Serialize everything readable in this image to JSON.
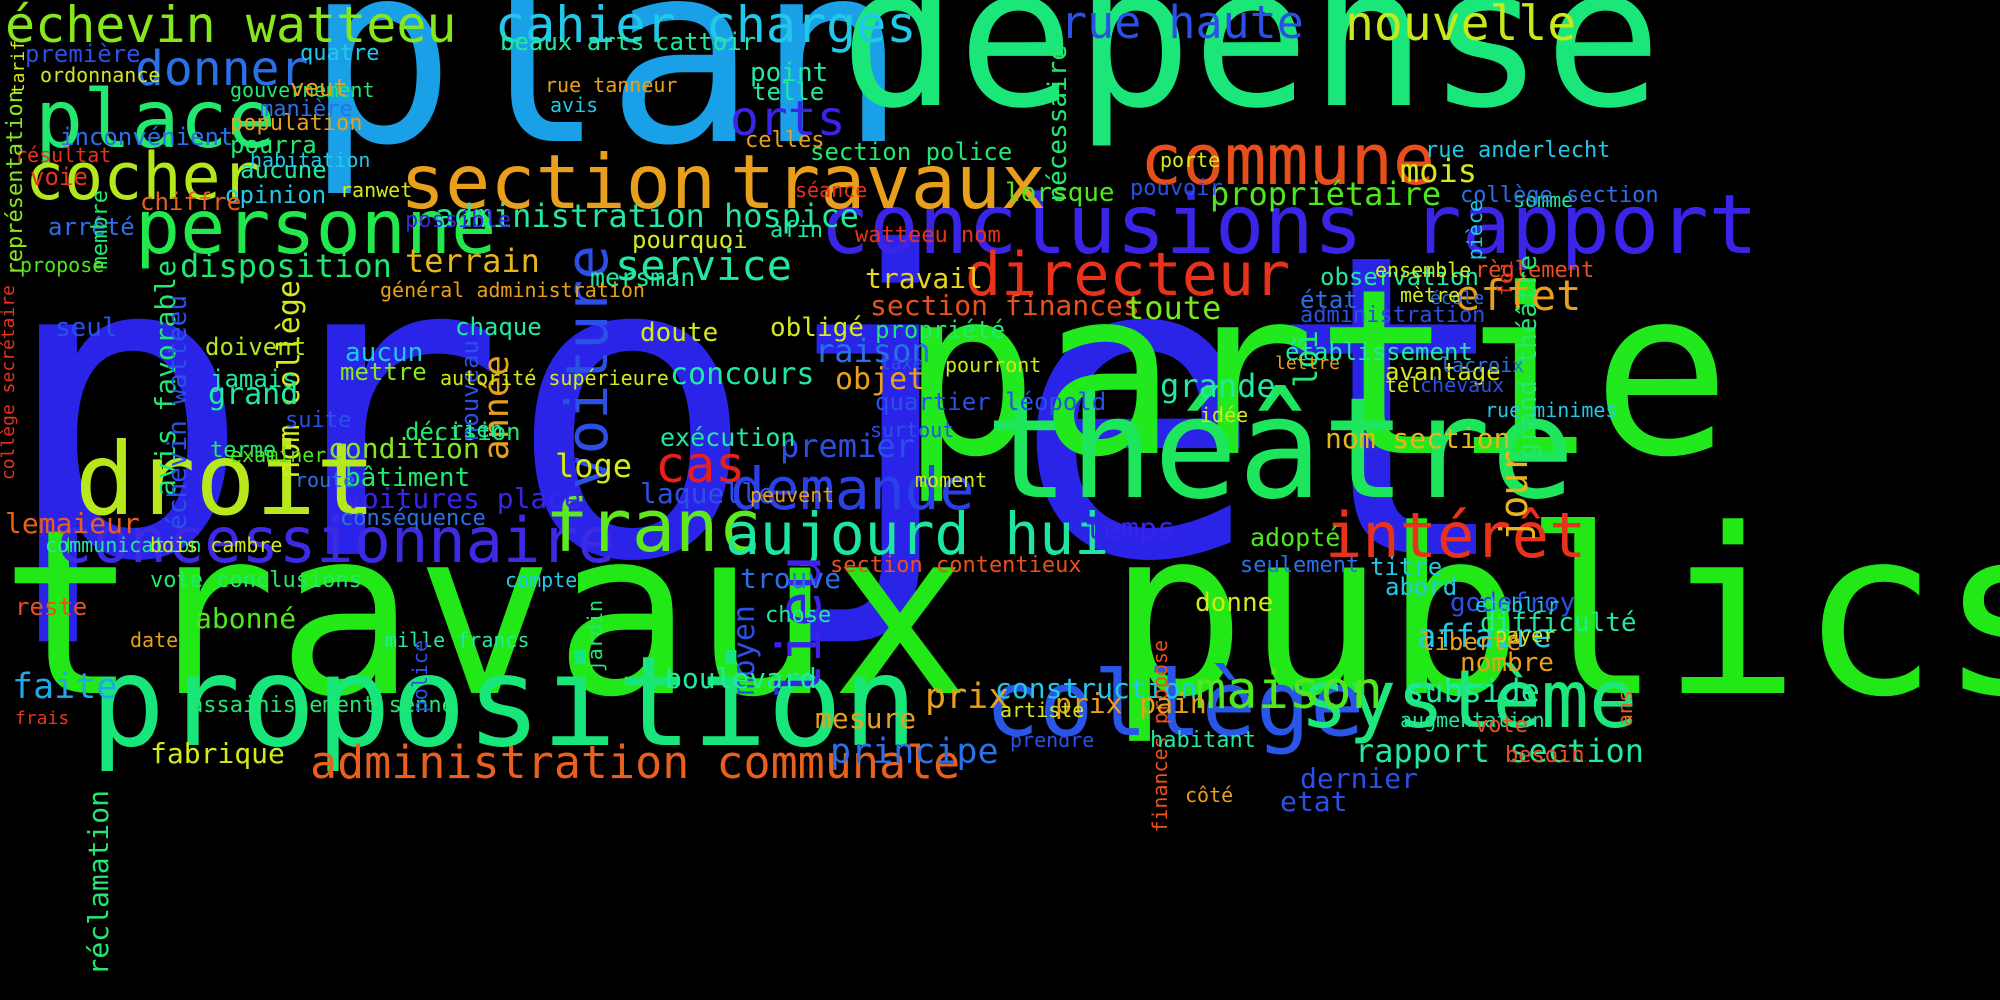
{
  "words": [
    {
      "text": "projet",
      "color": "#2a24e8"
    },
    {
      "text": "travaux publics",
      "color": "#22e818"
    },
    {
      "text": "plan",
      "color": "#1aa0e6"
    },
    {
      "text": "dépense",
      "color": "#1be67a"
    },
    {
      "text": "partie",
      "color": "#22e81e"
    },
    {
      "text": "théâtre",
      "color": "#1ee65c"
    },
    {
      "text": "proposition",
      "color": "#19e67a"
    },
    {
      "text": "droit",
      "color": "#b6e81c"
    },
    {
      "text": "collège",
      "color": "#2a56e8"
    },
    {
      "text": "système",
      "color": "#1de67a"
    },
    {
      "text": "conclusions rapport",
      "color": "#3a24e8"
    },
    {
      "text": "concessionnaire",
      "color": "#3d2ae4"
    },
    {
      "text": "franc",
      "color": "#5ee81e"
    },
    {
      "text": "aujourd hui",
      "color": "#1ee6a0"
    },
    {
      "text": "section",
      "color": "#e8a01c"
    },
    {
      "text": "travaux",
      "color": "#e8a01c"
    },
    {
      "text": "commune",
      "color": "#e84e1c"
    },
    {
      "text": "personne",
      "color": "#22e84c"
    },
    {
      "text": "place",
      "color": "#22e870"
    },
    {
      "text": "cocher",
      "color": "#b4e81c"
    },
    {
      "text": "échevin watteeu",
      "color": "#86e81c"
    },
    {
      "text": "cahier charges",
      "color": "#22c8e8"
    },
    {
      "text": "rue haute",
      "color": "#2a50e8"
    },
    {
      "text": "nouvelle",
      "color": "#c8e81c"
    },
    {
      "text": "donner",
      "color": "#2a70e8"
    },
    {
      "text": "directeur",
      "color": "#e8321c"
    },
    {
      "text": "demande",
      "color": "#2a40e8"
    },
    {
      "text": "intérêt",
      "color": "#e8321c"
    },
    {
      "text": "maison",
      "color": "#4ee81c"
    },
    {
      "text": "cas",
      "color": "#e8201c"
    },
    {
      "text": "voiture",
      "color": "#2a50e8"
    },
    {
      "text": "lieu",
      "color": "#3a24e8"
    },
    {
      "text": "administration communale",
      "color": "#e8601c"
    },
    {
      "text": "service",
      "color": "#22e8a0"
    },
    {
      "text": "orts",
      "color": "#3a24e8"
    },
    {
      "text": "administration hospice",
      "color": "#22e8a0"
    },
    {
      "text": "disposition",
      "color": "#22e870"
    },
    {
      "text": "terrain",
      "color": "#e8b41c"
    },
    {
      "text": "effet",
      "color": "#e8a01c"
    },
    {
      "text": "mois",
      "color": "#d4e81c"
    },
    {
      "text": "propriétaire",
      "color": "#4ee81c"
    },
    {
      "text": "subside",
      "color": "#22e8a0"
    },
    {
      "text": "affaire",
      "color": "#22c8e8"
    },
    {
      "text": "rapport section",
      "color": "#22e8a0"
    },
    {
      "text": "principe",
      "color": "#2a70e8"
    },
    {
      "text": "prix",
      "color": "#e8a01c"
    },
    {
      "text": "construction",
      "color": "#22c8e8"
    },
    {
      "text": "section finances",
      "color": "#e8501c"
    },
    {
      "text": "toute",
      "color": "#7ae81c"
    },
    {
      "text": "jour",
      "color": "#e8b41c"
    },
    {
      "text": "grande",
      "color": "#22e8a0"
    },
    {
      "text": "loi",
      "color": "#22e870"
    },
    {
      "text": "année",
      "color": "#e8a01c"
    },
    {
      "text": "avis favorable",
      "color": "#22e870"
    },
    {
      "text": "nom collège",
      "color": "#d4e81c"
    },
    {
      "text": "fabrique",
      "color": "#d4e81c"
    },
    {
      "text": "mesure",
      "color": "#e8a01c"
    },
    {
      "text": "temps",
      "color": "#3a24e8"
    },
    {
      "text": "trouve",
      "color": "#2a70e8"
    },
    {
      "text": "moyen",
      "color": "#2a50e8"
    },
    {
      "text": "concours",
      "color": "#22e8a0"
    },
    {
      "text": "raison",
      "color": "#2a70e8"
    },
    {
      "text": "premier",
      "color": "#2a50e8"
    },
    {
      "text": "section contentieux",
      "color": "#e8501c"
    },
    {
      "text": "nom section",
      "color": "#e8b41c"
    },
    {
      "text": "faite",
      "color": "#22a8e8"
    },
    {
      "text": "boulevard",
      "color": "#22e8a0"
    },
    {
      "text": "assainissement senne",
      "color": "#22e870"
    },
    {
      "text": "voitures place",
      "color": "#3a24e8"
    },
    {
      "text": "travail",
      "color": "#e8d41c"
    },
    {
      "text": "objet",
      "color": "#e8a01c"
    },
    {
      "text": "loge",
      "color": "#d4e81c"
    },
    {
      "text": "laquelle",
      "color": "#2a50e8"
    },
    {
      "text": "exécution",
      "color": "#22e8a0"
    },
    {
      "text": "condition",
      "color": "#86e81c"
    },
    {
      "text": "bâtiment",
      "color": "#22e870"
    },
    {
      "text": "grand",
      "color": "#22e8a0"
    },
    {
      "text": "aucun",
      "color": "#22c8e8"
    },
    {
      "text": "mettre",
      "color": "#86e81c"
    },
    {
      "text": "doivent",
      "color": "#b4e81c"
    },
    {
      "text": "jamais",
      "color": "#22e8a0"
    },
    {
      "text": "terme",
      "color": "#22e870"
    },
    {
      "text": "décision",
      "color": "#22e870"
    },
    {
      "text": "nouveau",
      "color": "#2a50e8"
    },
    {
      "text": "conséquence",
      "color": "#2a70e8"
    },
    {
      "text": "chaque",
      "color": "#22e8a0"
    },
    {
      "text": "doute",
      "color": "#d4e81c"
    },
    {
      "text": "pourquoi",
      "color": "#d4e81c"
    },
    {
      "text": "mersman",
      "color": "#22e8a0"
    },
    {
      "text": "point",
      "color": "#22e8a0"
    },
    {
      "text": "telle",
      "color": "#22e8a0"
    },
    {
      "text": "celles",
      "color": "#e8a01c"
    },
    {
      "text": "section police",
      "color": "#22e870"
    },
    {
      "text": "nécessaire",
      "color": "#22e870"
    },
    {
      "text": "lorsque",
      "color": "#4ee81c"
    },
    {
      "text": "pouvoir",
      "color": "#2a50e8"
    },
    {
      "text": "porte",
      "color": "#d4e81c"
    },
    {
      "text": "somme",
      "color": "#22e8a0"
    },
    {
      "text": "rue anderlecht",
      "color": "#22c8e8"
    },
    {
      "text": "collège section",
      "color": "#2a70e8"
    },
    {
      "text": "observation",
      "color": "#22e8a0"
    },
    {
      "text": "règlement",
      "color": "#e8501c"
    },
    {
      "text": "état",
      "color": "#2a70e8"
    },
    {
      "text": "administration",
      "color": "#2a50e8"
    },
    {
      "text": "école",
      "color": "#2a70e8"
    },
    {
      "text": "mètre",
      "color": "#d4e81c"
    },
    {
      "text": "ensemble",
      "color": "#d4e81c"
    },
    {
      "text": "aucune",
      "color": "#22e8a0"
    },
    {
      "text": "pourra",
      "color": "#22e870"
    },
    {
      "text": "opinion",
      "color": "#22c8e8"
    },
    {
      "text": "population",
      "color": "#e8a01c"
    },
    {
      "text": "manière",
      "color": "#2a70e8"
    },
    {
      "text": "gouvernement",
      "color": "#22e870"
    },
    {
      "text": "veut",
      "color": "#e8a01c"
    },
    {
      "text": "quatre",
      "color": "#22c8e8"
    },
    {
      "text": "première",
      "color": "#2a50e8"
    },
    {
      "text": "ordonnance",
      "color": "#d4e81c"
    },
    {
      "text": "beaux arts",
      "color": "#22e8a0"
    },
    {
      "text": "cattoir",
      "color": "#22e8a0"
    },
    {
      "text": "rue tanneur",
      "color": "#e8a01c"
    },
    {
      "text": "avis",
      "color": "#22c8e8"
    },
    {
      "text": "inconvénient",
      "color": "#2a70e8"
    },
    {
      "text": "habitation",
      "color": "#22c8e8"
    },
    {
      "text": "résultat",
      "color": "#e8321c"
    },
    {
      "text": "voie",
      "color": "#e8321c"
    },
    {
      "text": "chiffre",
      "color": "#e8601c"
    },
    {
      "text": "arrêté",
      "color": "#2a70e8"
    },
    {
      "text": "membre",
      "color": "#22e870"
    },
    {
      "text": "ranwet",
      "color": "#d4e81c"
    },
    {
      "text": "possible",
      "color": "#3a24e8"
    },
    {
      "text": "propose",
      "color": "#4ee81c"
    },
    {
      "text": "général administration",
      "color": "#e8a01c"
    },
    {
      "text": "séance",
      "color": "#e8321c"
    },
    {
      "text": "watteeu nom",
      "color": "#e8321c"
    },
    {
      "text": "afin",
      "color": "#22e8a0"
    },
    {
      "text": "représentation",
      "color": "#86e81c"
    },
    {
      "text": "tarif",
      "color": "#d4e81c"
    },
    {
      "text": "collège secrétaire",
      "color": "#e8321c"
    },
    {
      "text": "seul",
      "color": "#2a50e8"
    },
    {
      "text": "échevin watteeu",
      "color": "#2a50e8"
    },
    {
      "text": "suite",
      "color": "#2a50e8"
    },
    {
      "text": "rien",
      "color": "#22e8a0"
    },
    {
      "text": "autorité supérieure",
      "color": "#d4e81c"
    },
    {
      "text": "obligé",
      "color": "#d4e81c"
    },
    {
      "text": "propriété",
      "color": "#22e870"
    },
    {
      "text": "quartier léopold",
      "color": "#2a50e8"
    },
    {
      "text": "taxe",
      "color": "#2a50e8"
    },
    {
      "text": "pourront",
      "color": "#d4e81c"
    },
    {
      "text": "lettre",
      "color": "#e8a01c"
    },
    {
      "text": "avantage",
      "color": "#d4e81c"
    },
    {
      "text": "lacroix",
      "color": "#2a70e8"
    },
    {
      "text": "grand théâtre",
      "color": "#22e870"
    },
    {
      "text": "chevaux",
      "color": "#2a50e8"
    },
    {
      "text": "tel",
      "color": "#d4e81c"
    },
    {
      "text": "rue minimes",
      "color": "#22c8e8"
    },
    {
      "text": "idée",
      "color": "#d4e81c"
    },
    {
      "text": "établissement",
      "color": "#22e8a0"
    },
    {
      "text": "surtout",
      "color": "#2a50e8"
    },
    {
      "text": "moment",
      "color": "#d4e81c"
    },
    {
      "text": "foi",
      "color": "#e8321c"
    },
    {
      "text": "pièce",
      "color": "#22c8e8"
    },
    {
      "text": "examiner",
      "color": "#4ee81c"
    },
    {
      "text": "route",
      "color": "#2a70e8"
    },
    {
      "text": "peuvent",
      "color": "#e8a01c"
    },
    {
      "text": "lemaieur",
      "color": "#e8601c"
    },
    {
      "text": "communication",
      "color": "#22e8a0"
    },
    {
      "text": "bois cambre",
      "color": "#d4e81c"
    },
    {
      "text": "vote conclusions",
      "color": "#22e870"
    },
    {
      "text": "compte",
      "color": "#22c8e8"
    },
    {
      "text": "reste",
      "color": "#e8501c"
    },
    {
      "text": "abonné",
      "color": "#4ee81c"
    },
    {
      "text": "date",
      "color": "#e8a01c"
    },
    {
      "text": "mille francs",
      "color": "#22e8a0"
    },
    {
      "text": "police",
      "color": "#2a50e8"
    },
    {
      "text": "jardin",
      "color": "#22e870"
    },
    {
      "text": "chose",
      "color": "#22e8a0"
    },
    {
      "text": "adopté",
      "color": "#4ee81c"
    },
    {
      "text": "seulement",
      "color": "#2a70e8"
    },
    {
      "text": "titre",
      "color": "#22c8e8"
    },
    {
      "text": "abord",
      "color": "#22c8e8"
    },
    {
      "text": "godefroy",
      "color": "#2a50e8"
    },
    {
      "text": "donne",
      "color": "#d4e81c"
    },
    {
      "text": "établir",
      "color": "#22c8e8"
    },
    {
      "text": "difficulté",
      "color": "#22e8a0"
    },
    {
      "text": "payer",
      "color": "#d4e81c"
    },
    {
      "text": "liberté",
      "color": "#e8a01c"
    },
    {
      "text": "nombre",
      "color": "#e8a01c"
    },
    {
      "text": "finances propose",
      "color": "#e8501c"
    },
    {
      "text": "ans",
      "color": "#e8601c"
    },
    {
      "text": "augmentation",
      "color": "#22e8a0"
    },
    {
      "text": "vote",
      "color": "#e8501c"
    },
    {
      "text": "besoin",
      "color": "#e8501c"
    },
    {
      "text": "dernier",
      "color": "#2a50e8"
    },
    {
      "text": "etat",
      "color": "#2a50e8"
    },
    {
      "text": "côté",
      "color": "#e8a01c"
    },
    {
      "text": "prix pain",
      "color": "#e8a01c"
    },
    {
      "text": "habitant",
      "color": "#22e8a0"
    },
    {
      "text": "artiste",
      "color": "#d4e81c"
    },
    {
      "text": "prendre",
      "color": "#2a50e8"
    },
    {
      "text": "frais",
      "color": "#e8321c"
    },
    {
      "text": "réclamation",
      "color": "#22e870"
    }
  ]
}
